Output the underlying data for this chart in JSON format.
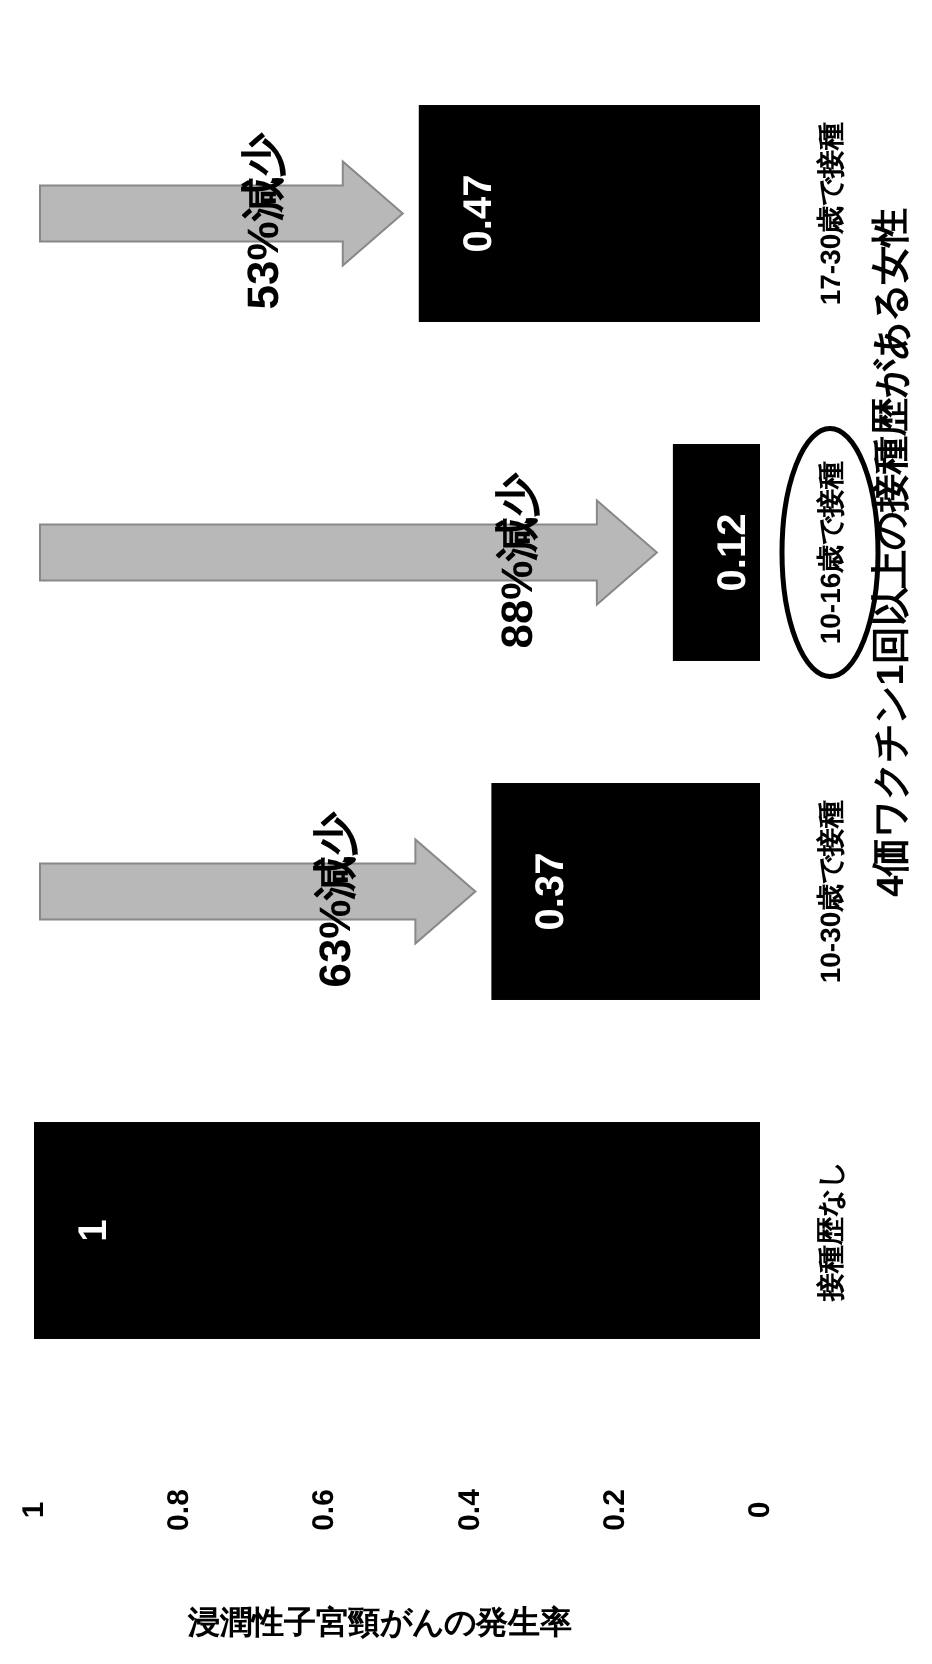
{
  "chart_data": {
    "type": "bar",
    "orientation": "horizontal",
    "xlabel": "浸潤性子宮頸がんの発生率",
    "ylabel": "4価ワクチン1回以上の接種歴がある女性",
    "categories": [
      "17-30歳で接種",
      "10-16歳で接種",
      "10-30歳で接種",
      "接種歴なし"
    ],
    "values": [
      0.47,
      0.12,
      0.37,
      1
    ],
    "color": "#000000",
    "xlim": [
      1,
      0
    ],
    "xticks": [
      1,
      0.8,
      0.6,
      0.4,
      0.2,
      0
    ],
    "data_labels": true,
    "annotations": [
      "53%減少",
      "88%減少",
      "63%減少"
    ]
  }
}
